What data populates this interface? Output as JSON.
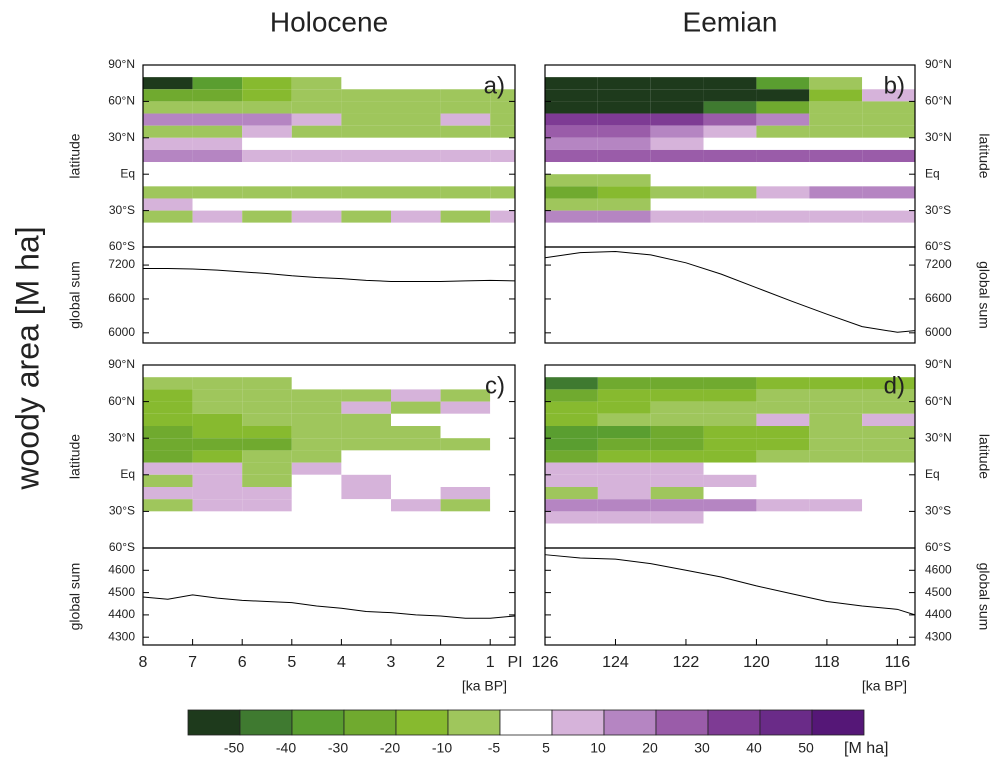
{
  "figure": {
    "columns": [
      "Holocene",
      "Eemian"
    ],
    "ylabel": "woody area [M ha]"
  },
  "colorbar": {
    "levels": [
      -50,
      -40,
      -30,
      -20,
      -10,
      -5,
      5,
      10,
      20,
      30,
      40,
      50
    ],
    "colors": [
      "#1e3a1c",
      "#3f7a30",
      "#5a9e30",
      "#70aa2f",
      "#87ba2f",
      "#9fc65c",
      "#ffffff",
      "#d6b3da",
      "#b585c2",
      "#9a5ca9",
      "#7e3b94",
      "#6a2b88",
      "#551777"
    ],
    "unit": "[M ha]"
  },
  "chart_data": [
    {
      "type": "heatmap",
      "label": "a)",
      "ylabel": "latitude",
      "xlim": [
        8,
        0.5
      ],
      "ylim": [
        -60,
        90
      ],
      "yticks": [
        {
          "value": 90,
          "label": "90°N"
        },
        {
          "value": 60,
          "label": "60°N"
        },
        {
          "value": 30,
          "label": "30°N"
        },
        {
          "value": 0,
          "label": "Eq"
        },
        {
          "value": -30,
          "label": "30°S"
        },
        {
          "value": -60,
          "label": "60°S"
        }
      ],
      "xbins": [
        8,
        7,
        6,
        5,
        4,
        3,
        2,
        1,
        0.5
      ],
      "ybins": [
        90,
        80,
        70,
        60,
        50,
        40,
        30,
        20,
        10,
        0,
        -10,
        -20,
        -30,
        -40,
        -50,
        -60
      ],
      "values": [
        [
          0,
          0,
          0,
          0,
          0,
          0,
          0,
          0
        ],
        [
          -55,
          -40,
          -20,
          -10,
          0,
          0,
          0,
          0
        ],
        [
          -30,
          -25,
          -20,
          -10,
          -8,
          -6,
          -6,
          -6
        ],
        [
          -10,
          -8,
          -8,
          -8,
          -8,
          -8,
          -8,
          -6
        ],
        [
          15,
          12,
          10,
          8,
          -8,
          -6,
          8,
          -6
        ],
        [
          -8,
          -6,
          8,
          -6,
          -6,
          -6,
          -8,
          -8
        ],
        [
          8,
          6,
          0,
          0,
          0,
          0,
          0,
          0
        ],
        [
          12,
          10,
          8,
          8,
          8,
          8,
          8,
          8
        ],
        [
          0,
          0,
          0,
          0,
          0,
          0,
          0,
          0
        ],
        [
          0,
          0,
          0,
          0,
          0,
          0,
          0,
          0
        ],
        [
          -10,
          -10,
          -8,
          -8,
          -8,
          -8,
          -8,
          -8
        ],
        [
          6,
          0,
          0,
          0,
          0,
          0,
          0,
          0
        ],
        [
          -8,
          8,
          -6,
          8,
          -6,
          6,
          -6,
          6
        ],
        [
          0,
          0,
          0,
          0,
          0,
          0,
          0,
          0
        ],
        [
          0,
          0,
          0,
          0,
          0,
          0,
          0,
          0
        ]
      ]
    },
    {
      "type": "line",
      "ylabel": "global sum",
      "color": "#000000",
      "xlim": [
        8,
        0.5
      ],
      "ylim": [
        5820,
        7520
      ],
      "yticks": [
        6000,
        6600,
        7200
      ],
      "x": [
        8,
        7.5,
        7,
        6.5,
        6,
        5.5,
        5,
        4.5,
        4,
        3.5,
        3,
        2.5,
        2,
        1.5,
        1,
        0.5
      ],
      "values": [
        7140,
        7140,
        7130,
        7110,
        7080,
        7050,
        7010,
        6980,
        6960,
        6930,
        6910,
        6910,
        6910,
        6920,
        6930,
        6920
      ]
    },
    {
      "type": "heatmap",
      "label": "b)",
      "ylabel": "latitude",
      "xlim": [
        126,
        115.5
      ],
      "ylim": [
        -60,
        90
      ],
      "yticks": [
        {
          "value": 90,
          "label": "90°N"
        },
        {
          "value": 60,
          "label": "60°N"
        },
        {
          "value": 30,
          "label": "30°N"
        },
        {
          "value": 0,
          "label": "Eq"
        },
        {
          "value": -30,
          "label": "30°S"
        },
        {
          "value": -60,
          "label": "60°S"
        }
      ],
      "xbins": [
        126,
        124.5,
        123,
        121.5,
        120,
        118.5,
        117,
        115.5
      ],
      "ybins": [
        90,
        80,
        70,
        60,
        50,
        40,
        30,
        20,
        10,
        0,
        -10,
        -20,
        -30,
        -40,
        -50,
        -60
      ],
      "values": [
        [
          0,
          0,
          0,
          0,
          0,
          0,
          0
        ],
        [
          -55,
          -55,
          -55,
          -55,
          -40,
          -10,
          0
        ],
        [
          -55,
          -55,
          -55,
          -55,
          -55,
          -20,
          8
        ],
        [
          -55,
          -55,
          -55,
          -45,
          -30,
          -10,
          -8
        ],
        [
          30,
          30,
          30,
          20,
          10,
          -8,
          -10
        ],
        [
          20,
          20,
          10,
          8,
          -8,
          -8,
          -8
        ],
        [
          15,
          10,
          8,
          0,
          0,
          0,
          0
        ],
        [
          20,
          20,
          20,
          20,
          20,
          20,
          20
        ],
        [
          0,
          0,
          0,
          0,
          0,
          0,
          0
        ],
        [
          -8,
          -6,
          0,
          0,
          0,
          0,
          0
        ],
        [
          -25,
          -20,
          -10,
          -8,
          8,
          10,
          10
        ],
        [
          -8,
          -6,
          0,
          0,
          0,
          0,
          0
        ],
        [
          10,
          10,
          8,
          8,
          8,
          6,
          6
        ],
        [
          0,
          0,
          0,
          0,
          0,
          0,
          0
        ],
        [
          0,
          0,
          0,
          0,
          0,
          0,
          0
        ]
      ]
    },
    {
      "type": "line",
      "ylabel": "global sum",
      "color": "#000000",
      "xlim": [
        126,
        115.5
      ],
      "ylim": [
        5820,
        7520
      ],
      "yticks": [
        6000,
        6600,
        7200
      ],
      "x": [
        126,
        125,
        124,
        123,
        122,
        121,
        120,
        119,
        118,
        117,
        116,
        115.5
      ],
      "values": [
        7330,
        7420,
        7440,
        7380,
        7240,
        7040,
        6800,
        6560,
        6330,
        6110,
        6010,
        6040
      ]
    },
    {
      "type": "heatmap",
      "label": "c)",
      "ylabel": "latitude",
      "xlim": [
        8,
        0.5
      ],
      "ylim": [
        -60,
        90
      ],
      "yticks": [
        {
          "value": 90,
          "label": "90°N"
        },
        {
          "value": 60,
          "label": "60°N"
        },
        {
          "value": 30,
          "label": "30°N"
        },
        {
          "value": 0,
          "label": "Eq"
        },
        {
          "value": -30,
          "label": "30°S"
        },
        {
          "value": -60,
          "label": "60°S"
        }
      ],
      "xbins": [
        8,
        7,
        6,
        5,
        4,
        3,
        2,
        1,
        0.5
      ],
      "ybins": [
        90,
        80,
        70,
        60,
        50,
        40,
        30,
        20,
        10,
        0,
        -10,
        -20,
        -30,
        -40,
        -50,
        -60
      ],
      "values": [
        [
          0,
          0,
          0,
          0,
          0,
          0,
          0,
          0
        ],
        [
          -10,
          -8,
          -6,
          0,
          0,
          0,
          0,
          0
        ],
        [
          -15,
          -10,
          -8,
          -6,
          -6,
          6,
          -6,
          0
        ],
        [
          -15,
          -10,
          -8,
          -6,
          6,
          -6,
          6,
          0
        ],
        [
          -20,
          -15,
          -10,
          -6,
          -6,
          0,
          0,
          0
        ],
        [
          -25,
          -20,
          -20,
          -10,
          -8,
          -6,
          0,
          0
        ],
        [
          -30,
          -30,
          -25,
          -10,
          -6,
          -6,
          -6,
          0
        ],
        [
          -25,
          -20,
          -8,
          -6,
          0,
          0,
          0,
          0
        ],
        [
          6,
          6,
          -6,
          6,
          0,
          0,
          0,
          0
        ],
        [
          -6,
          6,
          -6,
          0,
          6,
          0,
          0,
          0
        ],
        [
          6,
          6,
          6,
          0,
          6,
          0,
          6,
          0
        ],
        [
          -6,
          6,
          6,
          0,
          0,
          6,
          -6,
          0
        ],
        [
          0,
          0,
          0,
          0,
          0,
          0,
          0,
          0
        ],
        [
          0,
          0,
          0,
          0,
          0,
          0,
          0,
          0
        ],
        [
          0,
          0,
          0,
          0,
          0,
          0,
          0,
          0
        ]
      ]
    },
    {
      "type": "line",
      "ylabel": "global sum",
      "color": "#000000",
      "xlim": [
        8,
        0.5
      ],
      "ylim": [
        4265,
        4700
      ],
      "yticks": [
        4300,
        4400,
        4500,
        4600
      ],
      "xticks": [
        8,
        7,
        6,
        5,
        4,
        3,
        2,
        1,
        {
          "value": 0.5,
          "label": "PI"
        }
      ],
      "xlabel": "[ka BP]",
      "x": [
        8,
        7.5,
        7,
        6.5,
        6,
        5.5,
        5,
        4.5,
        4,
        3.5,
        3,
        2.5,
        2,
        1.5,
        1,
        0.5
      ],
      "values": [
        4480,
        4470,
        4490,
        4475,
        4465,
        4460,
        4455,
        4440,
        4430,
        4415,
        4410,
        4400,
        4395,
        4385,
        4385,
        4395
      ]
    },
    {
      "type": "heatmap",
      "label": "d)",
      "ylabel": "latitude",
      "xlim": [
        126,
        115.5
      ],
      "ylim": [
        -60,
        90
      ],
      "yticks": [
        {
          "value": 90,
          "label": "90°N"
        },
        {
          "value": 60,
          "label": "60°N"
        },
        {
          "value": 30,
          "label": "30°N"
        },
        {
          "value": 0,
          "label": "Eq"
        },
        {
          "value": -30,
          "label": "30°S"
        },
        {
          "value": -60,
          "label": "60°S"
        }
      ],
      "xbins": [
        126,
        124.5,
        123,
        121.5,
        120,
        118.5,
        117,
        115.5
      ],
      "ybins": [
        90,
        80,
        70,
        60,
        50,
        40,
        30,
        20,
        10,
        0,
        -10,
        -20,
        -30,
        -40,
        -50,
        -60
      ],
      "values": [
        [
          0,
          0,
          0,
          0,
          0,
          0,
          0
        ],
        [
          -50,
          -30,
          -30,
          -25,
          -20,
          -20,
          -15
        ],
        [
          -25,
          -20,
          -20,
          -15,
          -10,
          -10,
          -8
        ],
        [
          -20,
          -15,
          -10,
          -8,
          -8,
          -6,
          -6
        ],
        [
          -15,
          -10,
          -8,
          -6,
          6,
          -6,
          6
        ],
        [
          -40,
          -35,
          -30,
          -20,
          -15,
          -10,
          -8
        ],
        [
          -35,
          -30,
          -30,
          -20,
          -15,
          -10,
          -8
        ],
        [
          -25,
          -20,
          -20,
          -15,
          -10,
          -8,
          -6
        ],
        [
          6,
          6,
          6,
          0,
          0,
          0,
          0
        ],
        [
          6,
          6,
          6,
          6,
          0,
          0,
          0
        ],
        [
          -6,
          6,
          -6,
          0,
          0,
          0,
          0
        ],
        [
          15,
          12,
          10,
          10,
          8,
          6,
          0
        ],
        [
          8,
          6,
          6,
          0,
          0,
          0,
          0
        ],
        [
          0,
          0,
          0,
          0,
          0,
          0,
          0
        ],
        [
          0,
          0,
          0,
          0,
          0,
          0,
          0
        ]
      ]
    },
    {
      "type": "line",
      "ylabel": "global sum",
      "color": "#000000",
      "xlim": [
        126,
        115.5
      ],
      "ylim": [
        4265,
        4700
      ],
      "yticks": [
        4300,
        4400,
        4500,
        4600
      ],
      "xticks": [
        126,
        124,
        122,
        120,
        118,
        116
      ],
      "xlabel": "[ka BP]",
      "x": [
        126,
        125,
        124,
        123,
        122,
        121,
        120,
        119,
        118,
        117,
        116,
        115.5
      ],
      "values": [
        4670,
        4655,
        4650,
        4630,
        4600,
        4570,
        4530,
        4495,
        4460,
        4440,
        4425,
        4400
      ]
    }
  ]
}
